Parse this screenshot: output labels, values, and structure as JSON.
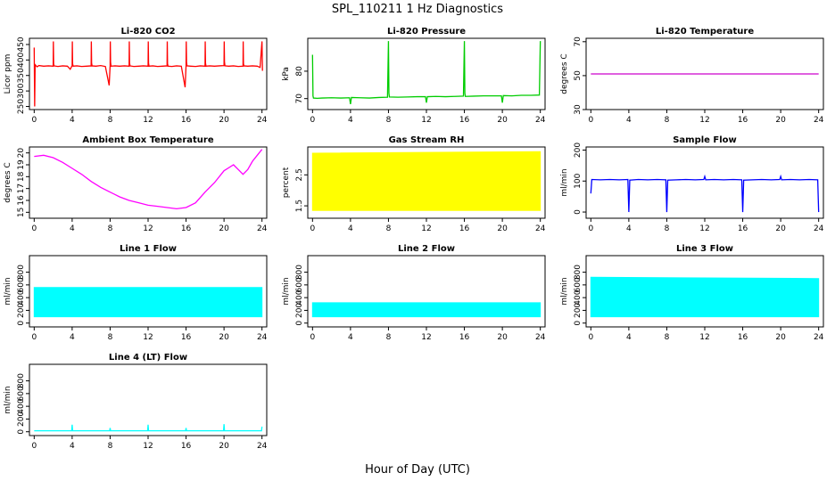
{
  "figure": {
    "title": "SPL_110211  1 Hz Diagnostics",
    "xlabel": "Hour of Day (UTC)"
  },
  "chart_data": [
    {
      "id": "co2",
      "type": "line",
      "title": "Li-820 CO2",
      "ylabel": "Licor ppm",
      "color": "#ff0000",
      "xlim": [
        -0.5,
        24.5
      ],
      "ylim": [
        240,
        470
      ],
      "xticks": [
        0,
        4,
        8,
        12,
        16,
        20,
        24
      ],
      "yticks": [
        250,
        300,
        350,
        400,
        450
      ],
      "x": [
        0,
        0.05,
        0.1,
        0.3,
        0.5,
        1,
        1.5,
        2,
        2.02,
        2.05,
        2.1,
        2.5,
        3,
        3.5,
        3.8,
        4,
        4.02,
        4.05,
        4.1,
        4.5,
        5,
        5.5,
        6,
        6.02,
        6.05,
        6.1,
        6.5,
        7,
        7.5,
        7.9,
        8,
        8.02,
        8.05,
        8.1,
        8.5,
        9,
        9.5,
        10,
        10.02,
        10.05,
        10.1,
        10.5,
        11,
        11.5,
        12,
        12.02,
        12.05,
        12.1,
        12.5,
        13,
        13.5,
        14,
        14.02,
        14.05,
        14.1,
        14.5,
        15,
        15.5,
        15.9,
        16,
        16.02,
        16.05,
        16.1,
        16.5,
        17,
        17.5,
        18,
        18.02,
        18.05,
        18.1,
        18.5,
        19,
        19.5,
        20,
        20.02,
        20.05,
        20.1,
        20.5,
        21,
        21.5,
        22,
        22.02,
        22.05,
        22.1,
        22.5,
        23,
        23.5,
        23.8,
        24,
        24.05
      ],
      "y": [
        440,
        250,
        385,
        378,
        382,
        380,
        381,
        380,
        460,
        388,
        381,
        379,
        381,
        380,
        370,
        382,
        460,
        388,
        380,
        381,
        379,
        380,
        381,
        460,
        390,
        381,
        380,
        382,
        379,
        318,
        381,
        460,
        392,
        380,
        381,
        380,
        381,
        380,
        460,
        390,
        381,
        379,
        380,
        381,
        380,
        460,
        390,
        380,
        381,
        379,
        380,
        381,
        460,
        388,
        380,
        379,
        381,
        380,
        312,
        382,
        460,
        392,
        381,
        380,
        379,
        381,
        380,
        460,
        390,
        380,
        381,
        380,
        381,
        382,
        460,
        394,
        381,
        380,
        381,
        379,
        380,
        460,
        388,
        381,
        380,
        381,
        380,
        376,
        460,
        365
      ]
    },
    {
      "id": "pressure",
      "type": "line",
      "title": "Li-820 Pressure",
      "ylabel": "kPa",
      "color": "#00cc00",
      "xlim": [
        -0.5,
        24.5
      ],
      "ylim": [
        66,
        92
      ],
      "xticks": [
        0,
        4,
        8,
        12,
        16,
        20,
        24
      ],
      "yticks": [
        70,
        80
      ],
      "x": [
        0,
        0.05,
        0.1,
        0.5,
        1,
        2,
        3,
        3.9,
        4,
        4.1,
        5,
        6,
        7,
        7.9,
        8,
        8.05,
        8.1,
        9,
        10,
        11,
        11.9,
        12,
        12.1,
        13,
        14,
        15,
        15.9,
        16,
        16.05,
        16.1,
        17,
        18,
        19,
        19.9,
        20,
        20.1,
        21,
        22,
        23,
        23.9,
        24
      ],
      "y": [
        86,
        71,
        70.2,
        70.1,
        70.2,
        70.3,
        70.2,
        70.3,
        68,
        70.4,
        70.3,
        70.2,
        70.4,
        70.5,
        91,
        72,
        70.6,
        70.5,
        70.6,
        70.7,
        70.7,
        68.5,
        70.7,
        70.8,
        70.7,
        70.8,
        70.9,
        91,
        72,
        70.8,
        70.9,
        71,
        71,
        71,
        68.5,
        71.1,
        71,
        71.2,
        71.2,
        71.3,
        91
      ]
    },
    {
      "id": "licor_temp",
      "type": "line",
      "title": "Li-820 Temperature",
      "ylabel": "degrees C",
      "color": "#cc00cc",
      "xlim": [
        -0.5,
        24.5
      ],
      "ylim": [
        30,
        72
      ],
      "xticks": [
        0,
        4,
        8,
        12,
        16,
        20,
        24
      ],
      "yticks": [
        30,
        50,
        70
      ],
      "x": [
        0,
        24
      ],
      "y": [
        51,
        51
      ]
    },
    {
      "id": "box_temp",
      "type": "line",
      "title": "Ambient Box Temperature",
      "ylabel": "degrees C",
      "color": "#ff00ff",
      "xlim": [
        -0.5,
        24.5
      ],
      "ylim": [
        14.5,
        20.5
      ],
      "xticks": [
        0,
        4,
        8,
        12,
        16,
        20,
        24
      ],
      "yticks": [
        15,
        16,
        17,
        18,
        19,
        20
      ],
      "x": [
        0,
        1,
        2,
        3,
        4,
        5,
        6,
        7,
        8,
        9,
        10,
        11,
        12,
        13,
        14,
        15,
        16,
        17,
        18,
        19,
        20,
        21,
        21.5,
        22,
        22.5,
        23,
        23.5,
        24
      ],
      "y": [
        19.7,
        19.8,
        19.6,
        19.2,
        18.7,
        18.2,
        17.6,
        17.1,
        16.7,
        16.3,
        16.0,
        15.8,
        15.6,
        15.5,
        15.4,
        15.3,
        15.4,
        15.8,
        16.7,
        17.5,
        18.5,
        19.0,
        18.6,
        18.2,
        18.6,
        19.3,
        19.8,
        20.3
      ]
    },
    {
      "id": "rh",
      "type": "area",
      "title": "Gas Stream RH",
      "ylabel": "percent",
      "color": "#ffff00",
      "xlim": [
        -0.5,
        24.5
      ],
      "ylim": [
        1.1,
        3.4
      ],
      "xticks": [
        0,
        4,
        8,
        12,
        16,
        20,
        24
      ],
      "yticks": [
        1.5,
        2.5
      ],
      "x": [
        0,
        24
      ],
      "y_low": [
        1.35,
        1.35
      ],
      "y_high": [
        3.2,
        3.25
      ]
    },
    {
      "id": "sample_flow",
      "type": "line",
      "title": "Sample Flow",
      "ylabel": "ml/min",
      "color": "#0000ff",
      "xlim": [
        -0.5,
        24.5
      ],
      "ylim": [
        -20,
        210
      ],
      "xticks": [
        0,
        4,
        8,
        12,
        16,
        20,
        24
      ],
      "yticks": [
        0,
        100,
        200
      ],
      "x": [
        0,
        0.1,
        1,
        2,
        3,
        3.9,
        4,
        4.1,
        5,
        6,
        7,
        7.9,
        8,
        8.1,
        9,
        10,
        11,
        11.9,
        12,
        12.1,
        13,
        14,
        15,
        15.9,
        16,
        16.1,
        17,
        18,
        19,
        19.9,
        20,
        20.1,
        21,
        22,
        23,
        23.9,
        24
      ],
      "y": [
        60,
        105,
        104,
        105,
        104,
        105,
        0,
        103,
        105,
        104,
        105,
        104,
        0,
        103,
        104,
        105,
        104,
        105,
        115,
        104,
        105,
        104,
        105,
        104,
        0,
        103,
        104,
        105,
        104,
        105,
        115,
        104,
        105,
        104,
        105,
        104,
        0
      ]
    },
    {
      "id": "line1",
      "type": "area",
      "title": "Line 1 Flow",
      "ylabel": "ml/min",
      "color": "#00ffff",
      "xlim": [
        -0.5,
        24.5
      ],
      "ylim": [
        -60,
        1060
      ],
      "xticks": [
        0,
        4,
        8,
        12,
        16,
        20,
        24
      ],
      "yticks": [
        0,
        200,
        400,
        600,
        800
      ],
      "x": [
        0,
        24
      ],
      "y_low": [
        100,
        100
      ],
      "y_high": [
        560,
        560
      ]
    },
    {
      "id": "line2",
      "type": "area",
      "title": "Line 2 Flow",
      "ylabel": "ml/min",
      "color": "#00ffff",
      "xlim": [
        -0.5,
        24.5
      ],
      "ylim": [
        -60,
        1060
      ],
      "xticks": [
        0,
        4,
        8,
        12,
        16,
        20,
        24
      ],
      "yticks": [
        0,
        200,
        400,
        600,
        800
      ],
      "x": [
        0,
        24
      ],
      "y_low": [
        100,
        100
      ],
      "y_high": [
        320,
        320
      ]
    },
    {
      "id": "line3",
      "type": "area",
      "title": "Line 3 Flow",
      "ylabel": "ml/min",
      "color": "#00ffff",
      "xlim": [
        -0.5,
        24.5
      ],
      "ylim": [
        -60,
        1060
      ],
      "xticks": [
        0,
        4,
        8,
        12,
        16,
        20,
        24
      ],
      "yticks": [
        0,
        200,
        400,
        600,
        800
      ],
      "x": [
        0,
        24
      ],
      "y_low": [
        100,
        100
      ],
      "y_high": [
        720,
        700
      ]
    },
    {
      "id": "line4",
      "type": "line",
      "title": "Line 4 (LT) Flow",
      "ylabel": "ml/min",
      "color": "#00ffff",
      "xlim": [
        -0.5,
        24.5
      ],
      "ylim": [
        -60,
        1060
      ],
      "xticks": [
        0,
        4,
        8,
        12,
        16,
        20,
        24
      ],
      "yticks": [
        0,
        200,
        400,
        600,
        800
      ],
      "x": [
        0,
        3.95,
        4,
        4.05,
        7.95,
        8,
        8.05,
        11.95,
        12,
        12.05,
        15.95,
        16,
        16.05,
        19.95,
        20,
        20.05,
        23.95,
        24
      ],
      "y": [
        15,
        15,
        110,
        15,
        15,
        60,
        15,
        15,
        110,
        15,
        15,
        60,
        15,
        15,
        120,
        15,
        15,
        80
      ]
    }
  ]
}
